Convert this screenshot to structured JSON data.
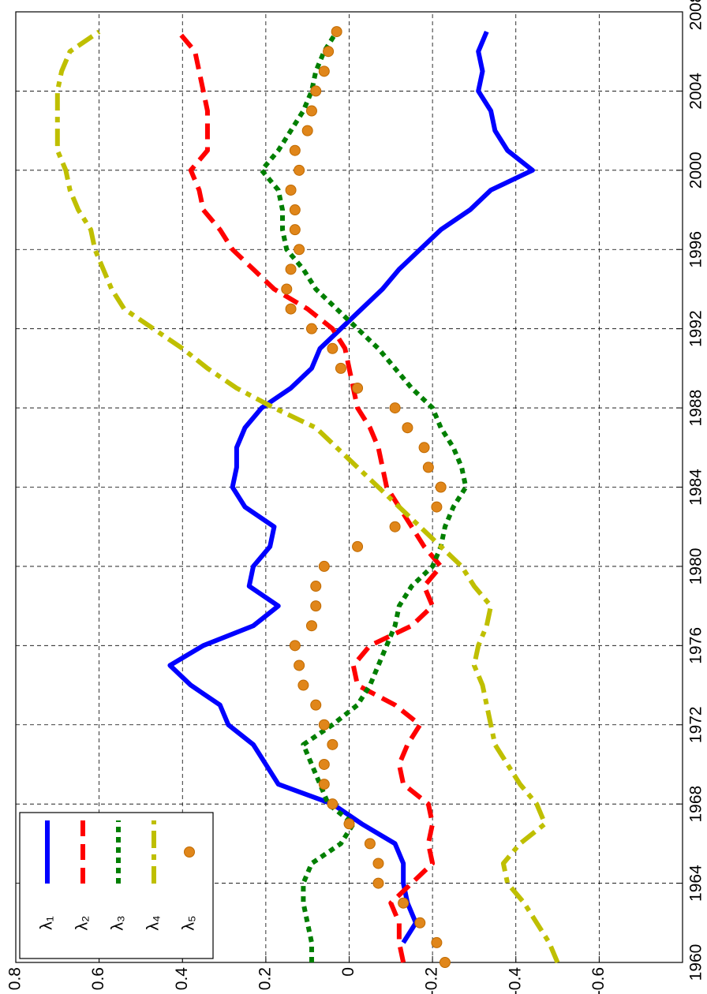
{
  "chart_data": {
    "type": "line",
    "x": [
      1960,
      1961,
      1962,
      1963,
      1964,
      1965,
      1966,
      1967,
      1968,
      1969,
      1970,
      1971,
      1972,
      1973,
      1974,
      1975,
      1976,
      1977,
      1978,
      1979,
      1980,
      1981,
      1982,
      1983,
      1984,
      1985,
      1986,
      1987,
      1988,
      1989,
      1990,
      1991,
      1992,
      1993,
      1994,
      1995,
      1996,
      1997,
      1998,
      1999,
      2000,
      2001,
      2002,
      2003,
      2004,
      2005,
      2006,
      2007
    ],
    "series": [
      {
        "name": "λ₁",
        "color": "#0000ff",
        "style": "solid",
        "values": [
          null,
          -0.13,
          -0.16,
          -0.14,
          -0.13,
          -0.13,
          -0.11,
          -0.03,
          0.04,
          0.17,
          0.2,
          0.23,
          0.29,
          0.31,
          0.38,
          0.43,
          0.35,
          0.23,
          0.17,
          0.24,
          0.23,
          0.19,
          0.18,
          0.25,
          0.28,
          0.27,
          0.27,
          0.25,
          0.21,
          0.14,
          0.09,
          0.07,
          0.02,
          -0.03,
          -0.08,
          -0.12,
          -0.17,
          -0.22,
          -0.29,
          -0.34,
          -0.44,
          -0.38,
          -0.35,
          -0.34,
          -0.31,
          -0.32,
          -0.31,
          -0.33
        ]
      },
      {
        "name": "λ₂",
        "color": "#ff0000",
        "style": "dashed",
        "values": [
          -0.13,
          -0.12,
          -0.12,
          -0.1,
          -0.15,
          -0.2,
          -0.19,
          -0.2,
          -0.19,
          -0.13,
          -0.12,
          -0.14,
          -0.17,
          -0.11,
          -0.02,
          -0.01,
          -0.05,
          -0.15,
          -0.2,
          -0.18,
          -0.22,
          -0.18,
          -0.15,
          -0.12,
          -0.09,
          -0.08,
          -0.07,
          -0.05,
          -0.02,
          -0.01,
          0,
          0.01,
          0.04,
          0.1,
          0.18,
          0.23,
          0.28,
          0.31,
          0.35,
          0.36,
          0.38,
          0.34,
          0.34,
          0.34,
          0.35,
          0.36,
          0.37,
          0.41
        ]
      },
      {
        "name": "λ₃",
        "color": "#007f00",
        "style": "dotted",
        "values": [
          0.09,
          0.09,
          0.1,
          0.11,
          0.11,
          0.09,
          0.02,
          -0.01,
          0.05,
          0.07,
          0.09,
          0.11,
          0.04,
          -0.02,
          -0.05,
          -0.07,
          -0.09,
          -0.11,
          -0.12,
          -0.15,
          -0.2,
          -0.22,
          -0.23,
          -0.25,
          -0.28,
          -0.27,
          -0.25,
          -0.22,
          -0.2,
          -0.15,
          -0.11,
          -0.07,
          -0.02,
          0.03,
          0.08,
          0.11,
          0.15,
          0.16,
          0.16,
          0.17,
          0.21,
          0.17,
          0.14,
          0.11,
          0.09,
          0.08,
          0.06,
          0.03
        ]
      },
      {
        "name": "λ₄",
        "color": "#bfbf00",
        "style": "dashdot",
        "values": [
          -0.5,
          -0.48,
          -0.45,
          -0.42,
          -0.38,
          -0.37,
          -0.41,
          -0.47,
          -0.45,
          -0.41,
          -0.38,
          -0.35,
          -0.34,
          -0.33,
          -0.32,
          -0.3,
          -0.31,
          -0.33,
          -0.34,
          -0.3,
          -0.27,
          -0.22,
          -0.17,
          -0.12,
          -0.07,
          -0.02,
          0.03,
          0.08,
          0.18,
          0.27,
          0.34,
          0.4,
          0.47,
          0.54,
          0.57,
          0.59,
          0.61,
          0.62,
          0.65,
          0.67,
          0.68,
          0.7,
          0.7,
          0.7,
          0.7,
          0.69,
          0.67,
          0.6
        ]
      },
      {
        "name": "λ₅",
        "color": "#e0861a",
        "style": "markers",
        "values": [
          -0.23,
          -0.21,
          -0.17,
          -0.13,
          -0.07,
          -0.07,
          -0.05,
          0,
          0.04,
          0.06,
          0.06,
          0.04,
          0.06,
          0.08,
          0.11,
          0.12,
          0.13,
          0.09,
          0.08,
          0.08,
          0.06,
          -0.02,
          -0.11,
          -0.21,
          -0.22,
          -0.19,
          -0.18,
          -0.14,
          -0.11,
          -0.02,
          0.02,
          0.04,
          0.09,
          0.14,
          0.15,
          0.14,
          0.12,
          0.13,
          0.13,
          0.14,
          0.12,
          0.13,
          0.1,
          0.09,
          0.08,
          0.06,
          0.05,
          0.03
        ]
      }
    ],
    "xlim": [
      1960,
      2008
    ],
    "xticks": [
      1960,
      1964,
      1968,
      1972,
      1976,
      1980,
      1984,
      1988,
      1992,
      1996,
      2000,
      2004,
      2008
    ],
    "ylim": [
      -0.8,
      0.8
    ],
    "yticks": [
      0.8,
      0.6,
      0.4,
      0.2,
      0,
      -0.2,
      -0.4,
      -0.6
    ],
    "grid": true,
    "legend": "upper left",
    "rotated": true
  }
}
